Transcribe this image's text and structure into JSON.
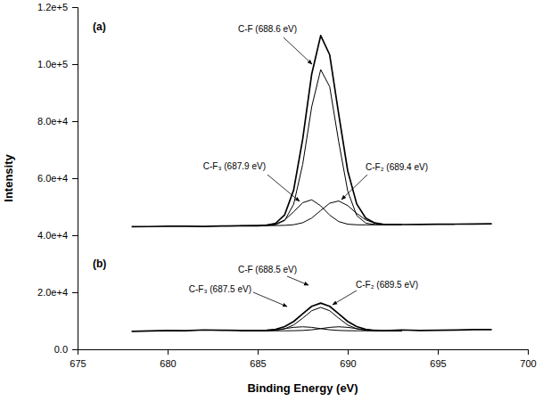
{
  "chart_data": {
    "type": "line",
    "xlabel": "Binding Energy (eV)",
    "ylabel": "Intensity",
    "xlim": [
      675,
      700
    ],
    "ylim": [
      0,
      120000
    ],
    "xticks": [
      675,
      680,
      685,
      690,
      695,
      700
    ],
    "yticks": [
      {
        "value": 0,
        "label": "0.0"
      },
      {
        "value": 20000,
        "label": "2.0e+4"
      },
      {
        "value": 40000,
        "label": "4.0e+4"
      },
      {
        "value": 60000,
        "label": "6.0e+4"
      },
      {
        "value": 80000,
        "label": "8.0e+4"
      },
      {
        "value": 100000,
        "label": "1.0e+5"
      },
      {
        "value": 120000,
        "label": "1.2e+5"
      }
    ],
    "series": [
      {
        "color": "#000000",
        "x": [
          678,
          679,
          680,
          681,
          682,
          683,
          684,
          685,
          685.5,
          686,
          686.5,
          687,
          687.5,
          688,
          688.5,
          689,
          689.5,
          690,
          690.5,
          691,
          691.5,
          692,
          692.5,
          693,
          694,
          695,
          696,
          697,
          698
        ],
        "values": [
          43000,
          43050,
          43150,
          43150,
          43100,
          43250,
          43300,
          43350,
          43480,
          44220,
          47170,
          55910,
          73710,
          96490,
          110050,
          103280,
          82450,
          62580,
          50980,
          46010,
          44310,
          43830,
          43750,
          43750,
          43800,
          43850,
          43900,
          43950,
          44050
        ]
      },
      {
        "color": "#000000",
        "x": [
          684,
          685,
          686,
          686.5,
          687,
          687.5,
          688,
          688.5,
          689,
          689.5,
          690,
          690.5,
          691,
          691.5,
          692,
          692.5,
          693
        ],
        "values": [
          43300,
          43352,
          43681,
          45175,
          50890,
          64855,
          85020,
          98085,
          92080,
          72775,
          55480,
          46905,
          44260,
          43752,
          43700,
          43725,
          43750
        ]
      },
      {
        "color": "#000000",
        "x": [
          684,
          685,
          686,
          686.5,
          687,
          687.5,
          688,
          688.5,
          689,
          689.5,
          690,
          690.5,
          691,
          691.5,
          692,
          692.5,
          693
        ],
        "values": [
          43300,
          43350,
          43936,
          45371,
          48230,
          51415,
          52430,
          50325,
          47050,
          44795,
          43886,
          43671,
          43650,
          43675,
          43700,
          43725,
          43750
        ]
      },
      {
        "color": "#000000",
        "x": [
          684,
          685,
          686,
          686.5,
          687,
          687.5,
          688,
          688.5,
          689,
          689.5,
          690,
          690.5,
          691,
          691.5,
          692,
          692.5,
          693
        ],
        "values": [
          43300,
          43350,
          43400,
          43472,
          43692,
          44390,
          46035,
          48685,
          51250,
          52025,
          50410,
          47655,
          45400,
          44235,
          43831,
          43748,
          43750
        ]
      },
      {
        "color": "#000000",
        "x": [
          678,
          679,
          680,
          681,
          682,
          683,
          684,
          685,
          685.5,
          686,
          686.5,
          687,
          687.5,
          688,
          688.5,
          689,
          689.5,
          690,
          690.5,
          691,
          691.5,
          692,
          693,
          694,
          695,
          696,
          697,
          698
        ],
        "values": [
          6300,
          6450,
          6600,
          6500,
          6800,
          6700,
          6600,
          6600,
          6700,
          7022,
          7954,
          9770,
          12438,
          15079,
          16210,
          15079,
          12438,
          9770,
          7954,
          7022,
          6650,
          6550,
          6800,
          6600,
          6700,
          6750,
          6900,
          6900
        ]
      },
      {
        "color": "#000000",
        "x": [
          684,
          685,
          685.5,
          686,
          686.5,
          687,
          687.5,
          688,
          688.5,
          689,
          689.5,
          690,
          690.5,
          691,
          691.5,
          692,
          693
        ],
        "values": [
          6500,
          6504,
          6532,
          6673,
          7194,
          8540,
          10920,
          13530,
          14700,
          13530,
          10920,
          8540,
          7194,
          6673,
          6532,
          6504,
          6500
        ]
      },
      {
        "color": "#000000",
        "x": [
          684,
          685,
          685.5,
          686,
          686.5,
          687,
          687.5,
          688,
          688.5,
          689,
          689.5,
          690,
          690.5,
          691,
          691.5,
          692,
          693
        ],
        "values": [
          6500,
          6530,
          6618,
          6849,
          7255,
          7700,
          7900,
          7700,
          7255,
          6849,
          6618,
          6530,
          6505,
          6500,
          6500,
          6500,
          6500
        ]
      },
      {
        "color": "#000000",
        "x": [
          684,
          685,
          685.5,
          686,
          686.5,
          687,
          687.5,
          688,
          688.5,
          689,
          689.5,
          690,
          690.5,
          691,
          691.5,
          692,
          693
        ],
        "values": [
          6500,
          6500,
          6500,
          6500,
          6505,
          6530,
          6618,
          6849,
          7255,
          7700,
          7900,
          7700,
          7255,
          6849,
          6618,
          6530,
          6500
        ]
      }
    ],
    "annotations": [
      "(a)",
      "C-F (688.6 eV)",
      "C-F₃ (687.9 eV)",
      "C-F₂ (689.4 eV)",
      "(b)",
      "C-F (688.5 eV)",
      "C-F₃ (687.5 eV)",
      "C-F₂ (689.5 eV)"
    ]
  }
}
